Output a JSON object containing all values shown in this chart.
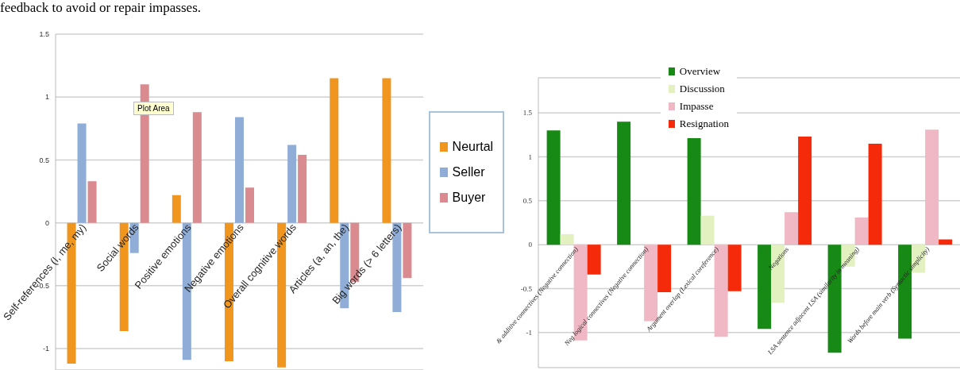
{
  "chart_data": [
    {
      "type": "bar",
      "annotations": [
        "feedback to avoid or repair impasses.",
        "Plot Area"
      ],
      "categories": [
        "Self-references (I, me, my)",
        "Social words",
        "Positive emotions",
        "Negative emotions",
        "Overall cognitive words",
        "Articles (a, an, the)",
        "Big words (> 6 letters)"
      ],
      "series": [
        {
          "name": "Neurtal",
          "color": "#f0961e",
          "values": [
            -1.12,
            -0.86,
            0.22,
            -1.1,
            -1.15,
            1.15,
            1.15
          ]
        },
        {
          "name": "Seller",
          "color": "#8fadd6",
          "values": [
            0.79,
            -0.24,
            -1.09,
            0.84,
            0.62,
            -0.68,
            -0.71
          ]
        },
        {
          "name": "Buyer",
          "color": "#d98b8f",
          "values": [
            0.33,
            1.1,
            0.88,
            0.28,
            0.54,
            -0.47,
            -0.44
          ]
        }
      ],
      "ylim": [
        -1.17,
        1.5
      ],
      "yticks": [
        -1,
        -0.5,
        0,
        0.5,
        1,
        1.5
      ],
      "grid": "y",
      "legend": "right"
    },
    {
      "type": "bar",
      "categories": [
        "& additive connectives (Negative connection)",
        "Neg logical connectives (Negative connection)",
        "Argument overlap  (Lexical coreference)",
        "Negations",
        "LSA sentence adjacent  LSA (similarity in meaning)",
        "Words before main verb (Syntactic simplicity)"
      ],
      "series": [
        {
          "name": "Overview",
          "color": "#168a14",
          "values": [
            1.3,
            1.4,
            1.23,
            -0.96,
            -1.23,
            -1.07
          ]
        },
        {
          "name": "Discussion",
          "color": "#e3f0c0",
          "values": [
            0.12,
            null,
            0.33,
            -0.66,
            -0.25,
            -0.32
          ]
        },
        {
          "name": "Impasse",
          "color": "#f0b8c4",
          "values": [
            -1.09,
            -0.87,
            -1.05,
            0.37,
            0.31,
            1.31
          ]
        },
        {
          "name": "Resignation",
          "color": "#f52a0a",
          "values": [
            -0.34,
            -0.54,
            -0.53,
            1.23,
            1.15,
            0.06
          ]
        }
      ],
      "ylim": [
        -1.4,
        1.9
      ],
      "yticks": [
        -1,
        -0.5,
        0,
        0.5,
        1,
        1.5
      ],
      "grid": "y",
      "legend": "top"
    }
  ]
}
